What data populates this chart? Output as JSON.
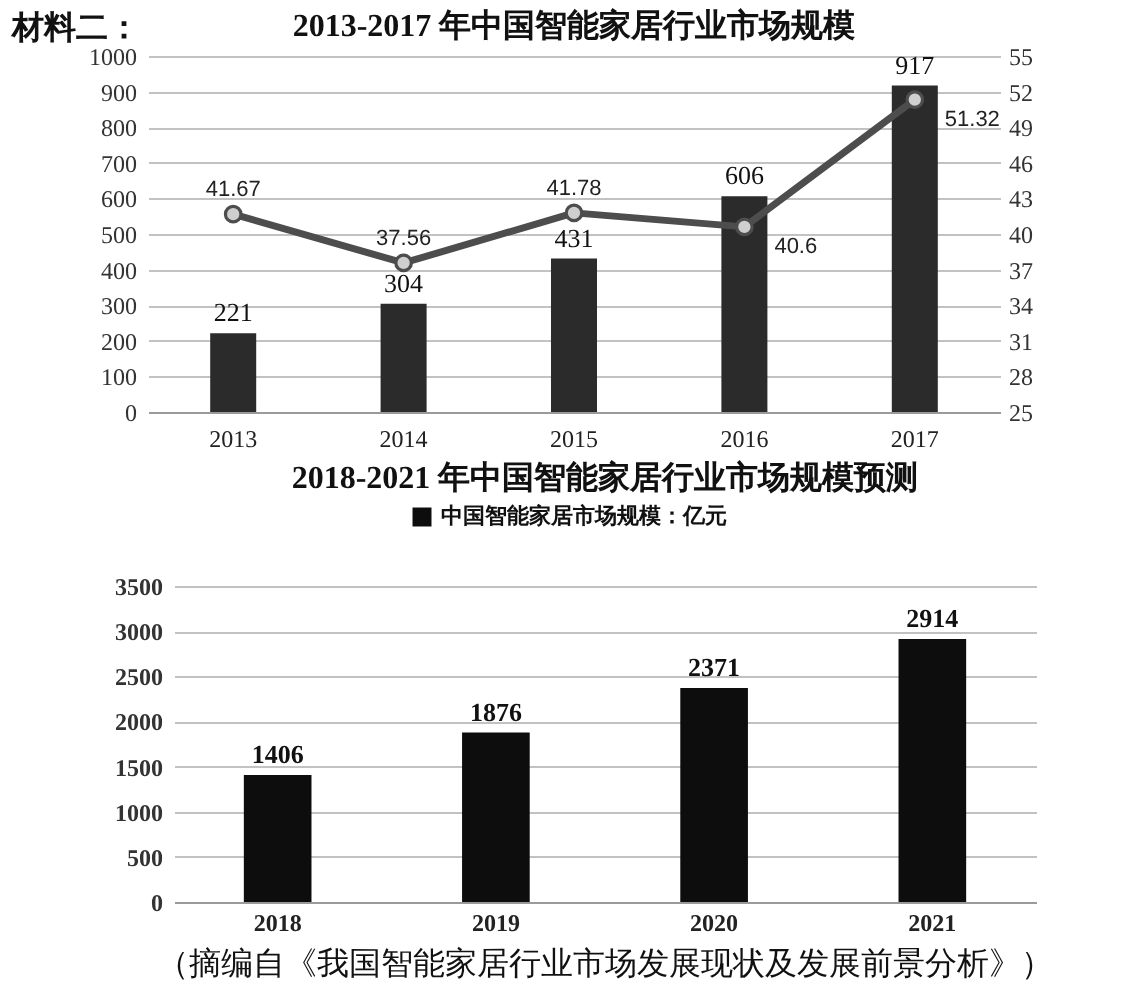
{
  "chart_data": [
    {
      "type": "bar",
      "title": "2013-2017 年中国智能家居行业市场规模",
      "annotations": [
        "材料二："
      ],
      "categories": [
        "2013",
        "2014",
        "2015",
        "2016",
        "2017"
      ],
      "series": [
        {
          "color": "#2b2b2b",
          "values": [
            221,
            304,
            431,
            606,
            917
          ]
        },
        {
          "type": "line",
          "axis": "y2",
          "color": "#4d4d4d",
          "values": [
            41.67,
            37.56,
            41.78,
            40.6,
            51.32
          ]
        }
      ],
      "ylim": [
        0,
        1000
      ],
      "yticks": [
        0,
        100,
        200,
        300,
        400,
        500,
        600,
        700,
        800,
        900,
        1000
      ],
      "y2lim": [
        25,
        55
      ],
      "y2ticks": [
        25,
        28,
        31,
        34,
        37,
        40,
        43,
        46,
        49,
        52,
        55
      ],
      "grid": "y",
      "marker": "circle",
      "data_labels": true
    },
    {
      "type": "bar",
      "title": "2018-2021 年中国智能家居行业市场规模预测",
      "categories": [
        "2018",
        "2019",
        "2020",
        "2021"
      ],
      "series": [
        {
          "name": "中国智能家居市场规模：亿元",
          "color": "#0d0d0d",
          "values": [
            1406,
            1876,
            2371,
            2914
          ]
        }
      ],
      "ylim": [
        0,
        3500
      ],
      "yticks": [
        0,
        500,
        1000,
        1500,
        2000,
        2500,
        3000,
        3500
      ],
      "grid": "y",
      "legend": "top",
      "data_labels": true,
      "annotations": [
        "（摘编自《我国智能家居行业市场发展现状及发展前景分析》）"
      ]
    }
  ]
}
